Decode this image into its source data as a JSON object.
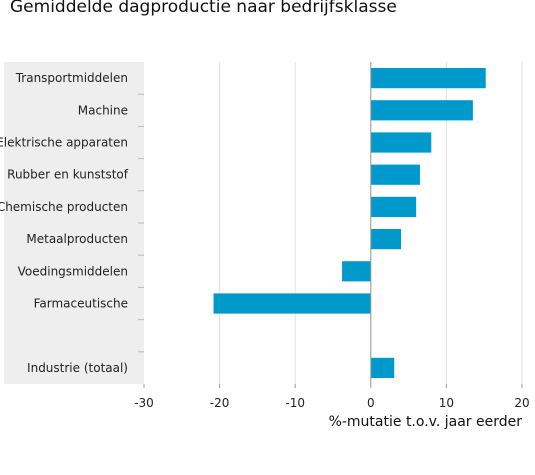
{
  "chart_data": {
    "type": "bar",
    "orientation": "horizontal",
    "title": "Gemiddelde dagproductie naar bedrijfsklasse",
    "xlabel": "%-mutatie t.o.v. jaar eerder",
    "ylabel": "",
    "xlim": [
      -30,
      20
    ],
    "xticks": [
      -30,
      -20,
      -10,
      0,
      10,
      20
    ],
    "grid": true,
    "bar_color": "#0099cc",
    "categories": [
      "Transportmiddelen",
      "Machine",
      "Elektrische apparaten",
      "Rubber en kunststof",
      "Chemische producten",
      "Metaalproducten",
      "Voedingsmiddelen",
      "Farmaceutische",
      "",
      "Industrie (totaal)"
    ],
    "values": [
      15.2,
      13.5,
      8.0,
      6.5,
      6.0,
      4.0,
      -3.8,
      -20.8,
      null,
      3.1
    ]
  }
}
